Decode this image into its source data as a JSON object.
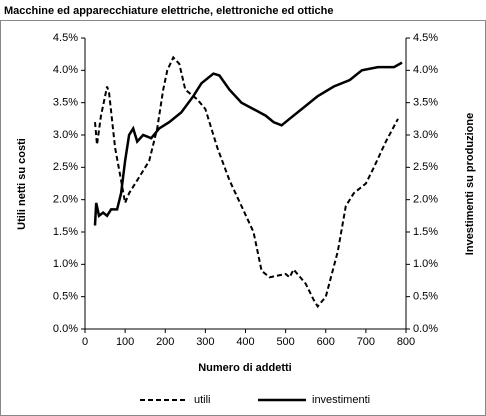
{
  "chart_data": {
    "type": "line",
    "title": "Macchine ed apparecchiature elettriche, elettroniche ed ottiche",
    "x_label": "Numero di addetti",
    "y_label": "Utili netti su costi",
    "y2_label": "Investimenti su produzione",
    "xlim": [
      0,
      800
    ],
    "xticks": [
      0,
      100,
      200,
      300,
      400,
      500,
      600,
      700,
      800
    ],
    "ylim": [
      0,
      4.5
    ],
    "yticks": [
      {
        "value": 0,
        "label": "0.0%"
      },
      {
        "value": 0.5,
        "label": "0.5%"
      },
      {
        "value": 1,
        "label": "1.0%"
      },
      {
        "value": 1.5,
        "label": "1.5%"
      },
      {
        "value": 2,
        "label": "2.0%"
      },
      {
        "value": 2.5,
        "label": "2.5%"
      },
      {
        "value": 3,
        "label": "3.0%"
      },
      {
        "value": 3.5,
        "label": "3.5%"
      },
      {
        "value": 4,
        "label": "4.0%"
      },
      {
        "value": 4.5,
        "label": "4.5%"
      }
    ],
    "y2lim": [
      0,
      4.5
    ],
    "y2ticks": [
      {
        "value": 0,
        "label": "0.0%"
      },
      {
        "value": 0.5,
        "label": "0.5%"
      },
      {
        "value": 1,
        "label": "1.0%"
      },
      {
        "value": 1.5,
        "label": "1.5%"
      },
      {
        "value": 2,
        "label": "2.0%"
      },
      {
        "value": 2.5,
        "label": "2.5%"
      },
      {
        "value": 3,
        "label": "3.0%"
      },
      {
        "value": 3.5,
        "label": "3.5%"
      },
      {
        "value": 4,
        "label": "4.0%"
      },
      {
        "value": 4.5,
        "label": "4.5%"
      }
    ],
    "legend": "bottom",
    "series": [
      {
        "name": "utili",
        "color": "#000000",
        "dash": true,
        "x": [
          25,
          30,
          40,
          55,
          60,
          75,
          90,
          100,
          110,
          130,
          160,
          180,
          195,
          205,
          220,
          235,
          250,
          280,
          300,
          330,
          360,
          390,
          420,
          440,
          460,
          500,
          510,
          520,
          550,
          570,
          580,
          600,
          630,
          650,
          670,
          700,
          720,
          750,
          780
        ],
        "values": [
          3.2,
          2.85,
          3.3,
          3.75,
          3.65,
          2.8,
          2.3,
          1.95,
          2.1,
          2.3,
          2.6,
          3.1,
          3.7,
          4.0,
          4.2,
          4.1,
          3.7,
          3.55,
          3.4,
          2.8,
          2.3,
          1.9,
          1.5,
          0.9,
          0.8,
          0.85,
          0.8,
          0.92,
          0.7,
          0.45,
          0.35,
          0.5,
          1.2,
          1.9,
          2.1,
          2.25,
          2.5,
          2.9,
          3.25
        ]
      },
      {
        "name": "investimenti",
        "color": "#000000",
        "dash": false,
        "axis": "y2",
        "x": [
          25,
          28,
          35,
          45,
          55,
          65,
          80,
          90,
          100,
          110,
          120,
          130,
          145,
          165,
          185,
          210,
          240,
          270,
          290,
          320,
          335,
          360,
          390,
          420,
          450,
          470,
          490,
          510,
          550,
          580,
          620,
          660,
          690,
          730,
          770,
          790
        ],
        "values": [
          1.6,
          1.95,
          1.75,
          1.8,
          1.75,
          1.85,
          1.85,
          2.1,
          2.6,
          3.0,
          3.1,
          2.9,
          3.0,
          2.95,
          3.1,
          3.2,
          3.35,
          3.6,
          3.8,
          3.95,
          3.92,
          3.7,
          3.5,
          3.4,
          3.3,
          3.2,
          3.15,
          3.25,
          3.45,
          3.6,
          3.75,
          3.85,
          4.0,
          4.05,
          4.05,
          4.12
        ]
      }
    ]
  }
}
